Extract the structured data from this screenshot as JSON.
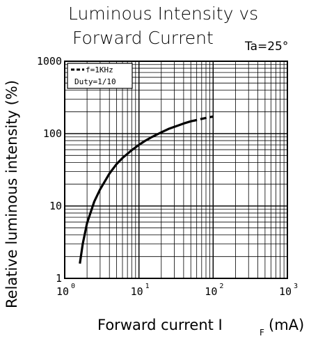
{
  "chart_data": {
    "type": "line",
    "title_line1": "Luminous Intensity vs",
    "title_line2": "Forward Current",
    "condition": "Ta=25°",
    "xlabel": "Forward current I",
    "xlabel_subscript": "F",
    "xlabel_unit": "(mA)",
    "ylabel": "Relative luminous intensity (%)",
    "x_scale": "log",
    "y_scale": "log",
    "xlim": [
      1,
      1000
    ],
    "ylim": [
      1,
      1000
    ],
    "x_ticks": [
      {
        "base": "10",
        "exp": "0"
      },
      {
        "base": "10",
        "exp": "1"
      },
      {
        "base": "10",
        "exp": "2"
      },
      {
        "base": "10",
        "exp": "3"
      }
    ],
    "y_ticks": [
      "1",
      "10",
      "100",
      "1000"
    ],
    "grid": true,
    "legend_position": "top-left",
    "legend": [
      {
        "label": "f=1KHz",
        "style": "dashed"
      },
      {
        "label": "Duty=1/10",
        "style": "none"
      }
    ],
    "series": [
      {
        "style": "solid",
        "x": [
          1.6,
          1.75,
          2,
          2.5,
          3,
          4,
          5,
          6,
          8,
          10,
          12,
          15,
          20,
          25,
          30,
          40,
          50
        ],
        "y": [
          1.6,
          3.0,
          5.8,
          11.5,
          17,
          28,
          38,
          46,
          59,
          70,
          79,
          90,
          104,
          116,
          124,
          138,
          148
        ]
      },
      {
        "style": "dashed",
        "x": [
          50,
          60,
          70,
          80,
          90,
          100
        ],
        "y": [
          148,
          154,
          160,
          165,
          169,
          172
        ]
      }
    ]
  }
}
